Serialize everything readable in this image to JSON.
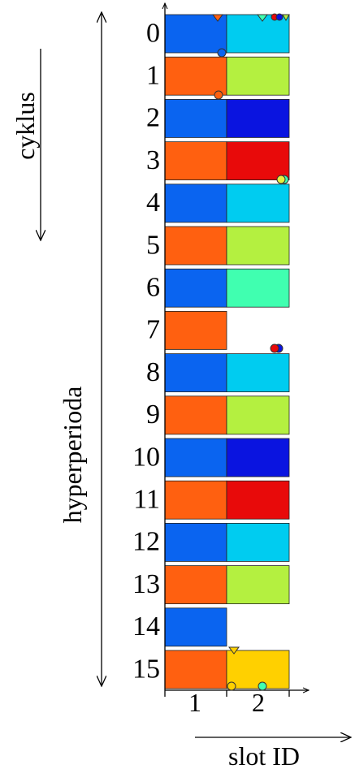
{
  "labels": {
    "cycle": "cyklus",
    "hyperperiod": "hyperperioda",
    "axis": "slot ID"
  },
  "slots": [
    "1",
    "2"
  ],
  "rows": [
    {
      "label": "0",
      "slot1": "#0a64f0",
      "slot2": "#00ccf0"
    },
    {
      "label": "1",
      "slot1": "#ff6010",
      "slot2": "#b4f040"
    },
    {
      "label": "2",
      "slot1": "#0a64f0",
      "slot2": "#0a14e0"
    },
    {
      "label": "3",
      "slot1": "#ff6010",
      "slot2": "#e80a0a"
    },
    {
      "label": "4",
      "slot1": "#0a64f0",
      "slot2": "#00ccf0"
    },
    {
      "label": "5",
      "slot1": "#ff6010",
      "slot2": "#b4f040"
    },
    {
      "label": "6",
      "slot1": "#0a64f0",
      "slot2": "#40ffb0"
    },
    {
      "label": "7",
      "slot1": "#ff6010",
      "slot2": null
    },
    {
      "label": "8",
      "slot1": "#0a64f0",
      "slot2": "#00ccf0"
    },
    {
      "label": "9",
      "slot1": "#ff6010",
      "slot2": "#b4f040"
    },
    {
      "label": "10",
      "slot1": "#0a64f0",
      "slot2": "#0a14e0"
    },
    {
      "label": "11",
      "slot1": "#ff6010",
      "slot2": "#e80a0a"
    },
    {
      "label": "12",
      "slot1": "#0a64f0",
      "slot2": "#00ccf0"
    },
    {
      "label": "13",
      "slot1": "#ff6010",
      "slot2": "#b4f040"
    },
    {
      "label": "14",
      "slot1": "#0a64f0",
      "slot2": null
    },
    {
      "label": "15",
      "slot1": "#ff6010",
      "slot2": "#ffd000"
    }
  ]
}
